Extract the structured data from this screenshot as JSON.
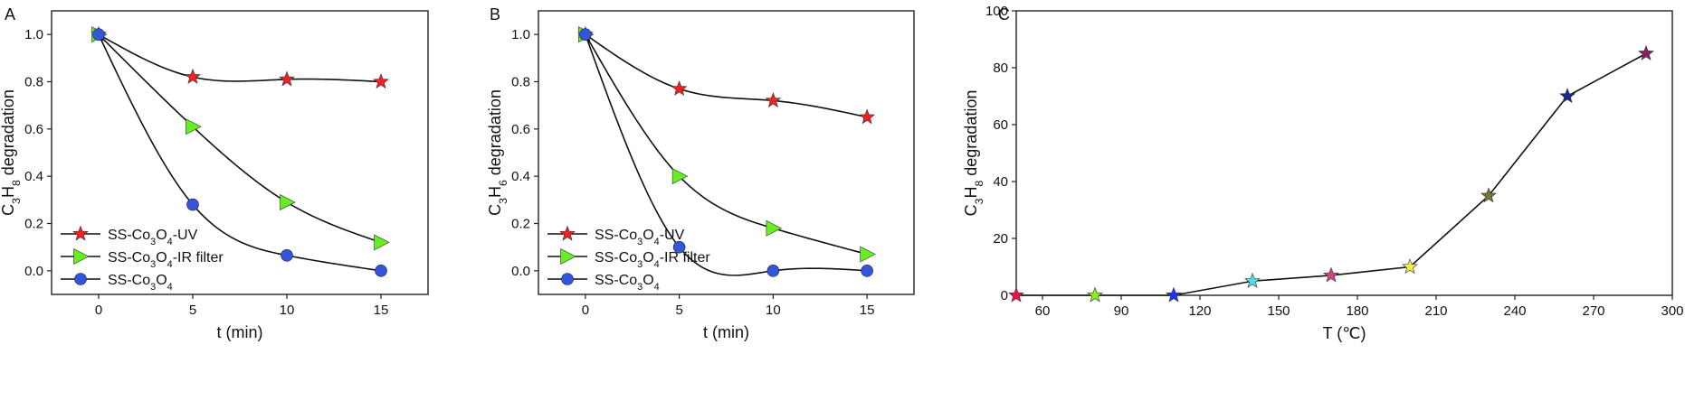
{
  "chart_data": [
    {
      "type": "line",
      "panel_label": "A",
      "xlabel": "t (min)",
      "ylabel": {
        "base": "C",
        "sub1": "3",
        "mid": "H",
        "sub2": "8",
        "tail": " degradation"
      },
      "xlim": [
        -2.5,
        17.5
      ],
      "ylim": [
        -0.1,
        1.1
      ],
      "xticks": [
        "0",
        "5",
        "10",
        "15"
      ],
      "yticks": [
        "0.0",
        "0.2",
        "0.4",
        "0.6",
        "0.8",
        "1.0"
      ],
      "x": [
        0,
        5,
        10,
        15
      ],
      "series": [
        {
          "name": "SS-Co3O4-UV",
          "legend": {
            "a": "SS-Co",
            "s1": "3",
            "b": "O",
            "s2": "4",
            "c": "-UV"
          },
          "marker": "star",
          "color": "#ee2222",
          "values": [
            1.0,
            0.82,
            0.81,
            0.8
          ]
        },
        {
          "name": "SS-Co3O4-IR filter",
          "legend": {
            "a": "SS-Co",
            "s1": "3",
            "b": "O",
            "s2": "4",
            "c": "-IR filter"
          },
          "marker": "triangle",
          "color": "#66ee22",
          "values": [
            1.0,
            0.61,
            0.29,
            0.12
          ]
        },
        {
          "name": "SS-Co3O4",
          "legend": {
            "a": "SS-Co",
            "s1": "3",
            "b": "O",
            "s2": "4",
            "c": ""
          },
          "marker": "circle",
          "color": "#3355dd",
          "values": [
            1.0,
            0.28,
            0.065,
            0.0
          ]
        }
      ],
      "legend_position": "bottom-left"
    },
    {
      "type": "line",
      "panel_label": "B",
      "xlabel": "t (min)",
      "ylabel": {
        "base": "C",
        "sub1": "3",
        "mid": "H",
        "sub2": "6",
        "tail": " degradation"
      },
      "xlim": [
        -2.5,
        17.5
      ],
      "ylim": [
        -0.1,
        1.1
      ],
      "xticks": [
        "0",
        "5",
        "10",
        "15"
      ],
      "yticks": [
        "0.0",
        "0.2",
        "0.4",
        "0.6",
        "0.8",
        "1.0"
      ],
      "x": [
        0,
        5,
        10,
        15
      ],
      "series": [
        {
          "name": "SS-Co3O4-UV",
          "legend": {
            "a": "SS-Co",
            "s1": "3",
            "b": "O",
            "s2": "4",
            "c": "-UV"
          },
          "marker": "star",
          "color": "#ee2222",
          "values": [
            1.0,
            0.77,
            0.72,
            0.65
          ]
        },
        {
          "name": "SS-Co3O4-IR filter",
          "legend": {
            "a": "SS-Co",
            "s1": "3",
            "b": "O",
            "s2": "4",
            "c": "-IR filter"
          },
          "marker": "triangle",
          "color": "#66ee22",
          "values": [
            1.0,
            0.4,
            0.18,
            0.07
          ]
        },
        {
          "name": "SS-Co3O4",
          "legend": {
            "a": "SS-Co",
            "s1": "3",
            "b": "O",
            "s2": "4",
            "c": ""
          },
          "marker": "circle",
          "color": "#3355dd",
          "values": [
            1.0,
            0.1,
            0.0,
            0.0
          ]
        }
      ],
      "legend_position": "bottom-left"
    },
    {
      "type": "line",
      "panel_label": "C",
      "xlabel": "T (℃)",
      "ylabel": {
        "base": "C",
        "sub1": "3",
        "mid": "H",
        "sub2": "8",
        "tail": " degradation"
      },
      "xlim": [
        50,
        300
      ],
      "ylim": [
        0,
        100
      ],
      "xticks": [
        "60",
        "90",
        "120",
        "150",
        "180",
        "210",
        "240",
        "270",
        "300"
      ],
      "yticks": [
        "0",
        "20",
        "40",
        "60",
        "80",
        "100"
      ],
      "x": [
        50,
        80,
        110,
        140,
        170,
        200,
        230,
        260,
        290
      ],
      "series": [
        {
          "name": "",
          "marker": "star",
          "colors": [
            "#ee1144",
            "#88ee22",
            "#2233ee",
            "#55dddd",
            "#cc4488",
            "#eeee44",
            "#777733",
            "#1a2a88",
            "#882266"
          ],
          "values": [
            0,
            0,
            0,
            5,
            7,
            10,
            35,
            70,
            85
          ]
        }
      ]
    }
  ]
}
